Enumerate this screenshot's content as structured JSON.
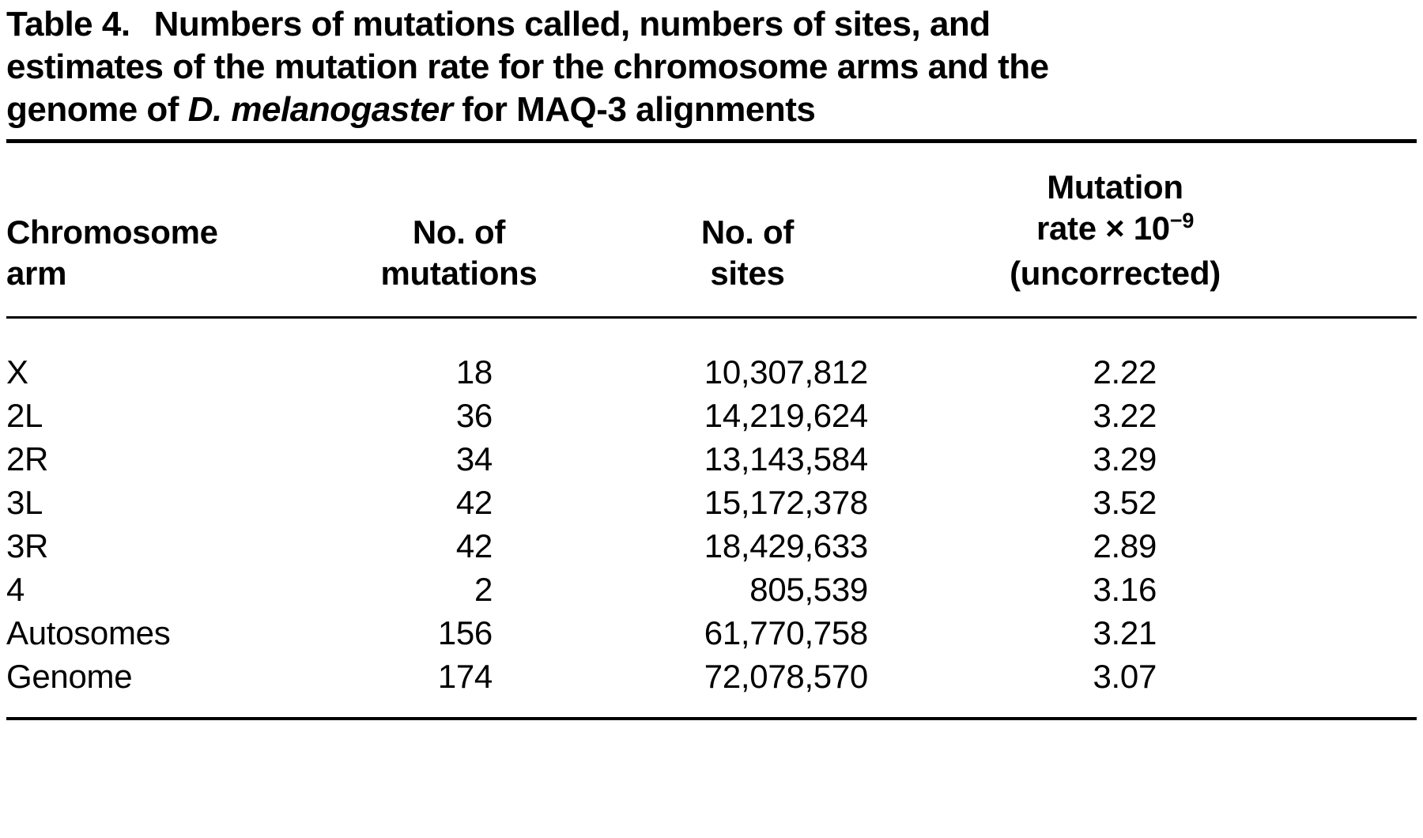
{
  "caption": {
    "label": "Table 4.",
    "line1": "Numbers of mutations called, numbers of sites, and",
    "line2": "estimates of the mutation rate for the chromosome arms and the",
    "line3_prefix": "genome of ",
    "line3_species": "D. melanogaster",
    "line3_suffix": " for MAQ-3 alignments"
  },
  "header": {
    "col1_line1": "Chromosome",
    "col1_line2": "arm",
    "col2_line1": "No. of",
    "col2_line2": "mutations",
    "col3_line1": "No. of",
    "col3_line2": "sites",
    "col4_line1": "Mutation",
    "col4_line2_prefix": "rate × 10",
    "col4_line2_sup": "−9",
    "col4_line3": "(uncorrected)"
  },
  "table": {
    "rows": [
      {
        "arm": "X",
        "mutations": "18",
        "sites": "10,307,812",
        "rate": "2.22"
      },
      {
        "arm": "2L",
        "mutations": "36",
        "sites": "14,219,624",
        "rate": "3.22"
      },
      {
        "arm": "2R",
        "mutations": "34",
        "sites": "13,143,584",
        "rate": "3.29"
      },
      {
        "arm": "3L",
        "mutations": "42",
        "sites": "15,172,378",
        "rate": "3.52"
      },
      {
        "arm": "3R",
        "mutations": "42",
        "sites": "18,429,633",
        "rate": "2.89"
      },
      {
        "arm": "4",
        "mutations": "2",
        "sites": "805,539",
        "rate": "3.16"
      },
      {
        "arm": "Autosomes",
        "mutations": "156",
        "sites": "61,770,758",
        "rate": "3.21"
      },
      {
        "arm": "Genome",
        "mutations": "174",
        "sites": "72,078,570",
        "rate": "3.07"
      }
    ]
  }
}
